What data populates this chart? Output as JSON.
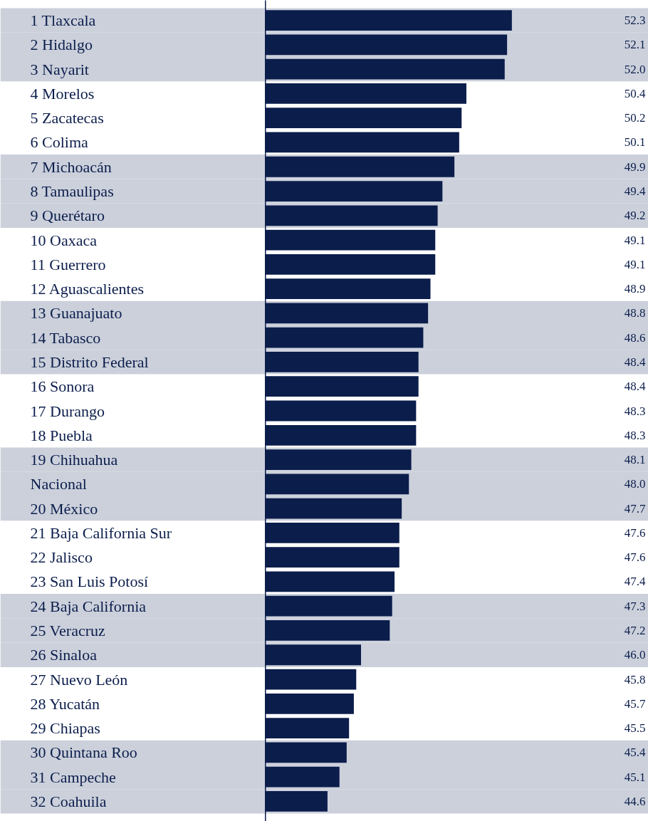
{
  "chart_data": {
    "type": "bar",
    "orientation": "horizontal",
    "categories": [
      "1 Tlaxcala",
      "2 Hidalgo",
      "3 Nayarit",
      "4 Morelos",
      "5 Zacatecas",
      "6 Colima",
      "7 Michoacán",
      "8 Tamaulipas",
      "9 Querétaro",
      "10 Oaxaca",
      "11 Guerrero",
      "12 Aguascalientes",
      "13 Guanajuato",
      "14 Tabasco",
      "15 Distrito Federal",
      "16 Sonora",
      "17 Durango",
      "18 Puebla",
      "19 Chihuahua",
      "Nacional",
      "20 México",
      "21 Baja California Sur",
      "22 Jalisco",
      "23 San Luis Potosí",
      "24 Baja California",
      "25 Veracruz",
      "26 Sinaloa",
      "27 Nuevo León",
      "28 Yucatán",
      "29 Chiapas",
      "30 Quintana Roo",
      "31 Campeche",
      "32 Coahuila"
    ],
    "values": [
      52.3,
      52.1,
      52.0,
      50.4,
      50.2,
      50.1,
      49.9,
      49.4,
      49.2,
      49.1,
      49.1,
      48.9,
      48.8,
      48.6,
      48.4,
      48.4,
      48.3,
      48.3,
      48.1,
      48.0,
      47.7,
      47.6,
      47.6,
      47.4,
      47.3,
      47.2,
      46.0,
      45.8,
      45.7,
      45.5,
      45.4,
      45.1,
      44.6
    ],
    "value_labels": [
      "52.3",
      "52.1",
      "52.0",
      "50.4",
      "50.2",
      "50.1",
      "49.9",
      "49.4",
      "49.2",
      "49.1",
      "49.1",
      "48.9",
      "48.8",
      "48.6",
      "48.4",
      "48.4",
      "48.3",
      "48.3",
      "48.1",
      "48.0",
      "47.7",
      "47.6",
      "47.6",
      "47.4",
      "47.3",
      "47.2",
      "46.0",
      "45.8",
      "45.7",
      "45.5",
      "45.4",
      "45.1",
      "44.6"
    ],
    "color": "#0b1d4b",
    "xlim": [
      42,
      58
    ],
    "tick_labels": "y",
    "grid": false
  }
}
